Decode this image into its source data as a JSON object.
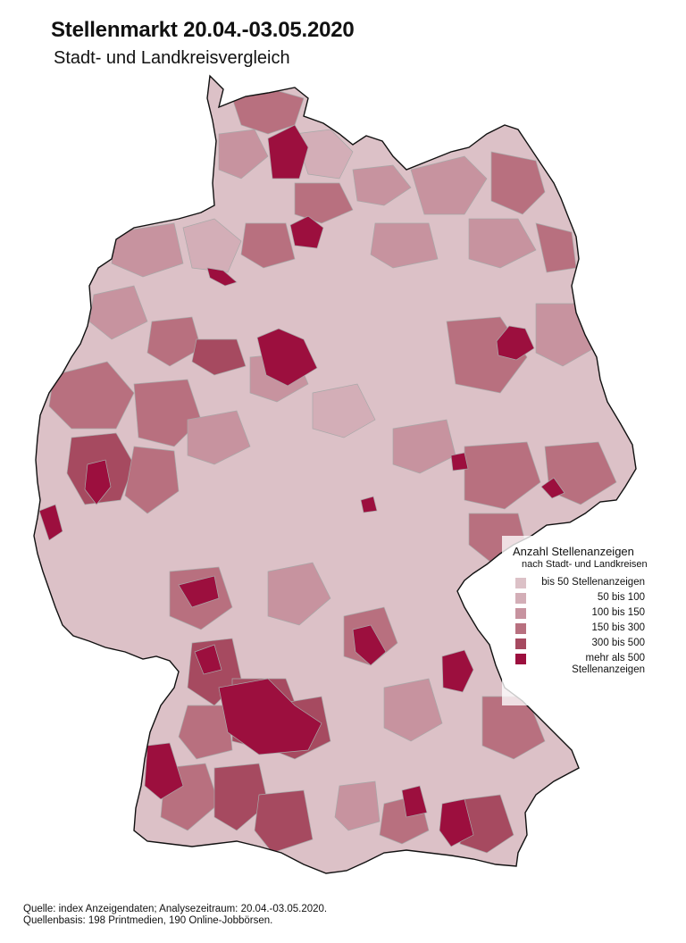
{
  "header": {
    "title": "Stellenmarkt 20.04.-03.05.2020",
    "subtitle": "Stadt- und Landkreisvergleich"
  },
  "legend": {
    "title": "Anzahl Stellenanzeigen",
    "subtitle": "nach Stadt- und Landkreisen",
    "items": [
      {
        "label": "bis 50 Stellenanzeigen",
        "color": "#dcc1c7"
      },
      {
        "label": "50 bis 100",
        "color": "#d3aeb7"
      },
      {
        "label": "100 bis 150",
        "color": "#c7939f"
      },
      {
        "label": "150 bis 300",
        "color": "#b8707f"
      },
      {
        "label": "300 bis 500",
        "color": "#a64a60"
      },
      {
        "label": "mehr als 500",
        "label2": "Stellenanzeigen",
        "color": "#9c0f3e"
      }
    ]
  },
  "footer": {
    "line1": "Quelle: index Anzeigendaten; Analysezeitraum: 20.04.-03.05.2020.",
    "line2": "Quellenbasis: 198 Printmedien, 190 Online-Jobbörsen."
  },
  "map": {
    "border_color": "#111111",
    "region_line_color": "#a8a8a8"
  }
}
